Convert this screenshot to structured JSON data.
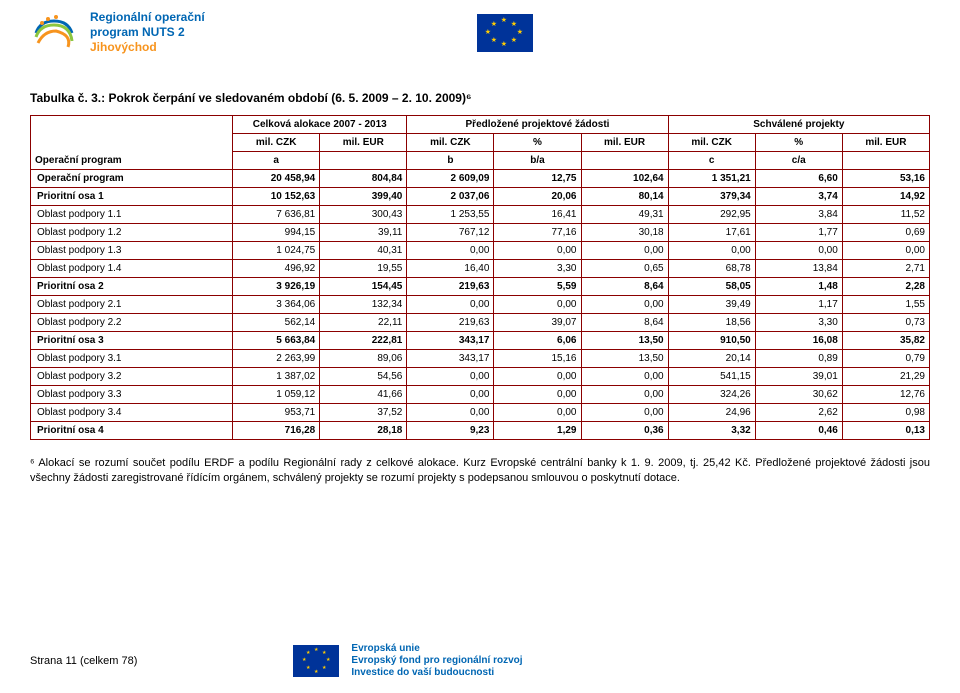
{
  "header": {
    "program_line1": "Regionální operační",
    "program_line2": "program NUTS 2",
    "program_sub": "Jihovýchod"
  },
  "table": {
    "title": "Tabulka č. 3.: Pokrok čerpání ve sledovaném období (6. 5. 2009 – 2. 10. 2009)⁶",
    "corner_label": "Operační program",
    "group_headers": {
      "g1": "Celková alokace 2007 - 2013",
      "g2": "Předložené projektové žádosti",
      "g3": "Schválené projekty"
    },
    "unit_headers": [
      "mil. CZK",
      "mil. EUR",
      "mil. CZK",
      "%",
      "mil. EUR",
      "mil. CZK",
      "%",
      "mil. EUR"
    ],
    "letter_headers": [
      "a",
      "",
      "b",
      "b/a",
      "",
      "c",
      "c/a",
      ""
    ],
    "rows": [
      {
        "label": "Operační program",
        "bold": true,
        "v": [
          "20 458,94",
          "804,84",
          "2 609,09",
          "12,75",
          "102,64",
          "1 351,21",
          "6,60",
          "53,16"
        ]
      },
      {
        "label": "Prioritní osa 1",
        "bold": true,
        "v": [
          "10 152,63",
          "399,40",
          "2 037,06",
          "20,06",
          "80,14",
          "379,34",
          "3,74",
          "14,92"
        ]
      },
      {
        "label": "Oblast podpory 1.1",
        "bold": false,
        "v": [
          "7 636,81",
          "300,43",
          "1 253,55",
          "16,41",
          "49,31",
          "292,95",
          "3,84",
          "11,52"
        ]
      },
      {
        "label": "Oblast podpory 1.2",
        "bold": false,
        "v": [
          "994,15",
          "39,11",
          "767,12",
          "77,16",
          "30,18",
          "17,61",
          "1,77",
          "0,69"
        ]
      },
      {
        "label": "Oblast podpory 1.3",
        "bold": false,
        "v": [
          "1 024,75",
          "40,31",
          "0,00",
          "0,00",
          "0,00",
          "0,00",
          "0,00",
          "0,00"
        ]
      },
      {
        "label": "Oblast podpory 1.4",
        "bold": false,
        "v": [
          "496,92",
          "19,55",
          "16,40",
          "3,30",
          "0,65",
          "68,78",
          "13,84",
          "2,71"
        ]
      },
      {
        "label": "Prioritní osa 2",
        "bold": true,
        "v": [
          "3 926,19",
          "154,45",
          "219,63",
          "5,59",
          "8,64",
          "58,05",
          "1,48",
          "2,28"
        ]
      },
      {
        "label": "Oblast podpory 2.1",
        "bold": false,
        "v": [
          "3 364,06",
          "132,34",
          "0,00",
          "0,00",
          "0,00",
          "39,49",
          "1,17",
          "1,55"
        ]
      },
      {
        "label": "Oblast podpory 2.2",
        "bold": false,
        "v": [
          "562,14",
          "22,11",
          "219,63",
          "39,07",
          "8,64",
          "18,56",
          "3,30",
          "0,73"
        ]
      },
      {
        "label": "Prioritní osa 3",
        "bold": true,
        "v": [
          "5 663,84",
          "222,81",
          "343,17",
          "6,06",
          "13,50",
          "910,50",
          "16,08",
          "35,82"
        ]
      },
      {
        "label": "Oblast podpory 3.1",
        "bold": false,
        "v": [
          "2 263,99",
          "89,06",
          "343,17",
          "15,16",
          "13,50",
          "20,14",
          "0,89",
          "0,79"
        ]
      },
      {
        "label": "Oblast podpory 3.2",
        "bold": false,
        "v": [
          "1 387,02",
          "54,56",
          "0,00",
          "0,00",
          "0,00",
          "541,15",
          "39,01",
          "21,29"
        ]
      },
      {
        "label": "Oblast podpory 3.3",
        "bold": false,
        "v": [
          "1 059,12",
          "41,66",
          "0,00",
          "0,00",
          "0,00",
          "324,26",
          "30,62",
          "12,76"
        ]
      },
      {
        "label": "Oblast podpory 3.4",
        "bold": false,
        "v": [
          "953,71",
          "37,52",
          "0,00",
          "0,00",
          "0,00",
          "24,96",
          "2,62",
          "0,98"
        ]
      },
      {
        "label": "Prioritní osa 4",
        "bold": true,
        "v": [
          "716,28",
          "28,18",
          "9,23",
          "1,29",
          "0,36",
          "3,32",
          "0,46",
          "0,13"
        ]
      }
    ],
    "border_color": "#8b0000"
  },
  "footnote": "⁶ Alokací se rozumí součet podílu ERDF a podílu Regionální rady z celkové alokace. Kurz Evropské centrální banky k 1. 9. 2009, tj. 25,42 Kč. Předložené projektové žádosti jsou všechny žádosti zaregistrované řídícím orgánem, schválený projekty se rozumí projekty s podepsanou smlouvou o poskytnutí dotace.",
  "footer": {
    "page": "Strana 11 (celkem 78)",
    "eu1": "Evropská unie",
    "eu2": "Evropský fond pro regionální rozvoj",
    "eu3": "Investice do vaší budoucnosti"
  },
  "colors": {
    "brand_blue": "#0066b3",
    "brand_orange": "#f7941e",
    "eu_blue": "#003399",
    "eu_gold": "#ffcc00"
  }
}
